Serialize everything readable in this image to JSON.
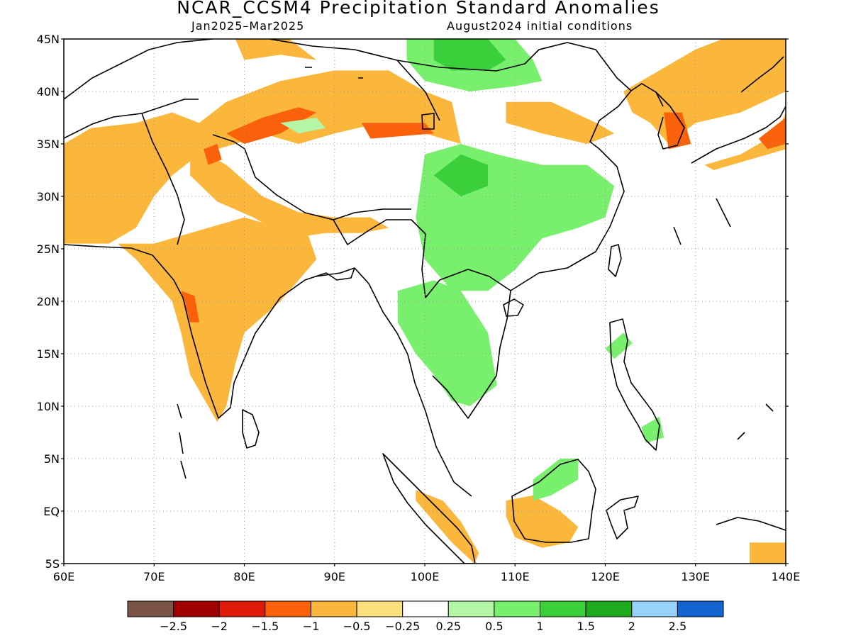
{
  "title": "NCAR_CCSM4 Precipitation Standard Anomalies",
  "subtitle_left": "Jan2025–Mar2025",
  "subtitle_right": "August2024 initial conditions",
  "lat_labels": [
    "45N",
    "40N",
    "35N",
    "30N",
    "25N",
    "20N",
    "15N",
    "10N",
    "5N",
    "EQ",
    "5S"
  ],
  "lat_values": [
    45,
    40,
    35,
    30,
    25,
    20,
    15,
    10,
    5,
    0,
    -5
  ],
  "lon_labels": [
    "60E",
    "70E",
    "80E",
    "90E",
    "100E",
    "110E",
    "120E",
    "130E",
    "140E"
  ],
  "lon_values": [
    60,
    70,
    80,
    90,
    100,
    110,
    120,
    130,
    140
  ],
  "map_extent": {
    "lon": [
      60,
      140
    ],
    "lat": [
      -5,
      45
    ]
  },
  "grid_lines": true,
  "colorbar": {
    "colors": [
      "#7a5446",
      "#a00000",
      "#de1b0a",
      "#f9620a",
      "#fbb63c",
      "#fde07e",
      "#ffffff",
      "#b3f7a6",
      "#78f06e",
      "#3ccf3c",
      "#1eaa1e",
      "#96d2fa",
      "#1464d2"
    ],
    "labels": [
      "−2.5",
      "−2",
      "−1.5",
      "−1",
      "−0.5",
      "−0.25",
      "0.25",
      "0.5",
      "1",
      "1.5",
      "2",
      "2.5"
    ]
  },
  "anomaly_regions": [
    {
      "name": "central-asia-dry",
      "color": "#fbb63c",
      "lonlat": [
        [
          60,
          35
        ],
        [
          63,
          36.5
        ],
        [
          68,
          37
        ],
        [
          72,
          38
        ],
        [
          75,
          37
        ],
        [
          78,
          39
        ],
        [
          84,
          41
        ],
        [
          90,
          42
        ],
        [
          96,
          42
        ],
        [
          100,
          40
        ],
        [
          103,
          39
        ],
        [
          104,
          35
        ],
        [
          100,
          36
        ],
        [
          95,
          37
        ],
        [
          90,
          36
        ],
        [
          86,
          35
        ],
        [
          82,
          36
        ],
        [
          79,
          35
        ],
        [
          75,
          34
        ],
        [
          72,
          32
        ],
        [
          70,
          30
        ],
        [
          68,
          27
        ],
        [
          65,
          25.5
        ],
        [
          60,
          25.5
        ]
      ]
    },
    {
      "name": "india-dry",
      "color": "#fbb63c",
      "lonlat": [
        [
          66,
          25.5
        ],
        [
          70,
          25.5
        ],
        [
          72,
          26
        ],
        [
          76,
          27
        ],
        [
          80,
          28
        ],
        [
          84,
          27
        ],
        [
          87,
          26.5
        ],
        [
          88,
          24
        ],
        [
          86,
          22
        ],
        [
          84,
          20
        ],
        [
          80,
          17
        ],
        [
          79,
          14
        ],
        [
          78,
          10
        ],
        [
          77,
          8.5
        ],
        [
          76,
          10
        ],
        [
          74,
          13
        ],
        [
          73,
          17
        ],
        [
          72,
          20
        ],
        [
          70,
          22
        ],
        [
          68,
          24
        ]
      ]
    },
    {
      "name": "himalaya-dry",
      "color": "#fbb63c",
      "lonlat": [
        [
          74,
          35
        ],
        [
          78,
          33
        ],
        [
          82,
          30
        ],
        [
          86,
          28.5
        ],
        [
          90,
          28
        ],
        [
          94,
          28
        ],
        [
          96,
          27
        ],
        [
          93,
          26.5
        ],
        [
          89,
          26.5
        ],
        [
          85,
          26
        ],
        [
          81,
          28
        ],
        [
          77,
          29.5
        ],
        [
          74,
          32
        ]
      ]
    },
    {
      "name": "mongolia-dry",
      "color": "#fbb63c",
      "lonlat": [
        [
          79,
          45
        ],
        [
          85,
          45
        ],
        [
          88,
          43
        ],
        [
          84,
          43.5
        ],
        [
          80,
          43
        ]
      ]
    },
    {
      "name": "north-china-dry",
      "color": "#fbb63c",
      "lonlat": [
        [
          109,
          39
        ],
        [
          114,
          39
        ],
        [
          119,
          37
        ],
        [
          121,
          36
        ],
        [
          118,
          35
        ],
        [
          113,
          36
        ],
        [
          109,
          37
        ]
      ]
    },
    {
      "name": "manchuria-dry",
      "color": "#fbb63c",
      "lonlat": [
        [
          122,
          40
        ],
        [
          126,
          42
        ],
        [
          130,
          44
        ],
        [
          133,
          45
        ],
        [
          140,
          45
        ],
        [
          140,
          40
        ],
        [
          135,
          38
        ],
        [
          130,
          37
        ],
        [
          127,
          35
        ],
        [
          125,
          37
        ],
        [
          123,
          38
        ]
      ]
    },
    {
      "name": "japan-dry",
      "color": "#fbb63c",
      "lonlat": [
        [
          131,
          33
        ],
        [
          135,
          34
        ],
        [
          139,
          36
        ],
        [
          140,
          38
        ],
        [
          140,
          34.5
        ],
        [
          136,
          33.5
        ],
        [
          132,
          32.5
        ]
      ]
    },
    {
      "name": "sumatra-dry",
      "color": "#fbb63c",
      "lonlat": [
        [
          99,
          2
        ],
        [
          102,
          1
        ],
        [
          104,
          -1
        ],
        [
          106,
          -4
        ],
        [
          105.5,
          -5
        ],
        [
          103,
          -3
        ],
        [
          101,
          -1
        ],
        [
          99,
          1
        ]
      ]
    },
    {
      "name": "borneo-dry",
      "color": "#fbb63c",
      "lonlat": [
        [
          109,
          1
        ],
        [
          112,
          1.5
        ],
        [
          115,
          0
        ],
        [
          117,
          -1.5
        ],
        [
          116,
          -3
        ],
        [
          113,
          -3.5
        ],
        [
          110,
          -2.5
        ],
        [
          109,
          -0.5
        ]
      ]
    },
    {
      "name": "new-guinea-dry",
      "color": "#fbb63c",
      "lonlat": [
        [
          136,
          -3
        ],
        [
          140,
          -3
        ],
        [
          140,
          -5
        ],
        [
          136,
          -5
        ]
      ]
    },
    {
      "name": "tibet-drier",
      "color": "#f9620a",
      "lonlat": [
        [
          78,
          36
        ],
        [
          82,
          37.5
        ],
        [
          86,
          38.5
        ],
        [
          88,
          38
        ],
        [
          84,
          36
        ],
        [
          80,
          35
        ]
      ]
    },
    {
      "name": "qinghai-drier",
      "color": "#f9620a",
      "lonlat": [
        [
          93,
          37
        ],
        [
          100,
          37
        ],
        [
          101,
          36
        ],
        [
          94,
          35.5
        ]
      ]
    },
    {
      "name": "kashmir-drier",
      "color": "#f9620a",
      "lonlat": [
        [
          75.5,
          34.5
        ],
        [
          77,
          35
        ],
        [
          77.5,
          33.5
        ],
        [
          76,
          33
        ]
      ]
    },
    {
      "name": "western-ghats-drier",
      "color": "#f9620a",
      "lonlat": [
        [
          73,
          21
        ],
        [
          74.5,
          20.5
        ],
        [
          75,
          18
        ],
        [
          74,
          18
        ]
      ]
    },
    {
      "name": "korea-drier",
      "color": "#f9620a",
      "lonlat": [
        [
          126.5,
          38
        ],
        [
          128.5,
          38
        ],
        [
          129.5,
          35
        ],
        [
          127,
          34.5
        ]
      ]
    },
    {
      "name": "japan-drier",
      "color": "#f9620a",
      "lonlat": [
        [
          137,
          35.5
        ],
        [
          140,
          37.5
        ],
        [
          140,
          35
        ],
        [
          138,
          34.5
        ]
      ]
    },
    {
      "name": "mongolia-wet",
      "color": "#78f06e",
      "lonlat": [
        [
          98,
          45
        ],
        [
          110,
          45
        ],
        [
          112,
          43
        ],
        [
          113,
          41
        ],
        [
          110,
          40.5
        ],
        [
          105,
          40
        ],
        [
          100,
          41
        ],
        [
          98,
          43
        ]
      ]
    },
    {
      "name": "mongolia-wetter",
      "color": "#3ccf3c",
      "lonlat": [
        [
          101,
          45
        ],
        [
          107,
          45
        ],
        [
          109,
          43
        ],
        [
          107,
          42
        ],
        [
          103,
          42
        ],
        [
          101,
          43
        ]
      ]
    },
    {
      "name": "south-china-wet",
      "color": "#78f06e",
      "lonlat": [
        [
          100,
          34
        ],
        [
          104,
          35
        ],
        [
          108,
          34
        ],
        [
          113,
          33
        ],
        [
          118,
          33
        ],
        [
          121,
          31
        ],
        [
          120,
          28
        ],
        [
          117,
          27
        ],
        [
          113,
          26
        ],
        [
          110,
          23
        ],
        [
          107,
          21
        ],
        [
          103,
          21
        ],
        [
          100,
          24
        ],
        [
          99,
          28
        ]
      ]
    },
    {
      "name": "sichuan-wetter",
      "color": "#3ccf3c",
      "lonlat": [
        [
          101,
          32
        ],
        [
          104,
          34
        ],
        [
          107,
          33
        ],
        [
          107,
          31
        ],
        [
          104,
          30
        ]
      ]
    },
    {
      "name": "indochina-wet",
      "color": "#78f06e",
      "lonlat": [
        [
          97,
          21
        ],
        [
          101,
          22
        ],
        [
          104,
          21
        ],
        [
          107,
          17
        ],
        [
          108,
          12
        ],
        [
          105,
          10
        ],
        [
          103,
          10.5
        ],
        [
          101,
          13
        ],
        [
          99,
          15
        ],
        [
          97,
          18
        ]
      ]
    },
    {
      "name": "tarim-wet",
      "color": "#b3f7a6",
      "lonlat": [
        [
          84,
          37
        ],
        [
          86,
          36
        ],
        [
          89,
          36.5
        ],
        [
          88,
          37.5
        ]
      ]
    },
    {
      "name": "borneo-wet",
      "color": "#78f06e",
      "lonlat": [
        [
          112,
          3
        ],
        [
          115,
          5
        ],
        [
          117,
          5
        ],
        [
          117,
          3
        ],
        [
          114,
          1.5
        ],
        [
          112,
          1
        ]
      ]
    },
    {
      "name": "philippines-wet",
      "color": "#78f06e",
      "lonlat": [
        [
          120,
          15.5
        ],
        [
          122,
          17
        ],
        [
          123,
          16
        ],
        [
          121,
          14.5
        ]
      ]
    },
    {
      "name": "mindanao-wet",
      "color": "#78f06e",
      "lonlat": [
        [
          124,
          8
        ],
        [
          126,
          9
        ],
        [
          126.5,
          7
        ],
        [
          124.5,
          6.5
        ]
      ]
    }
  ]
}
